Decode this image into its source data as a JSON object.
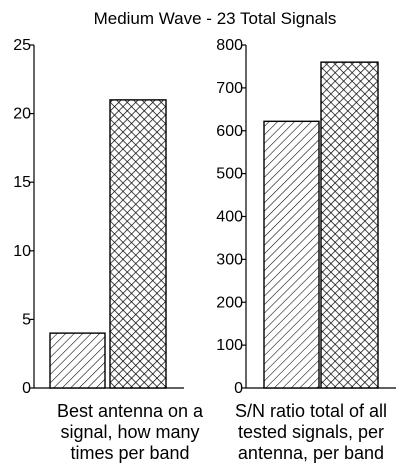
{
  "title": "Medium Wave - 23 Total Signals",
  "chart_data": [
    {
      "type": "bar",
      "title": "Medium Wave - 23 Total Signals",
      "caption": [
        "Best antenna on a",
        "signal, how many",
        "times per band"
      ],
      "ylim": [
        0,
        25
      ],
      "yticks": [
        0,
        5,
        10,
        15,
        20,
        25
      ],
      "categories": [
        "",
        ""
      ],
      "values": [
        4,
        21
      ],
      "patterns": [
        "diagonal-hatch",
        "cross-hatch"
      ],
      "grid": false,
      "legend": "none"
    },
    {
      "type": "bar",
      "caption": [
        "S/N ratio total of all",
        "tested signals, per",
        "antenna, per band"
      ],
      "ylim": [
        0,
        800
      ],
      "yticks": [
        0,
        100,
        200,
        300,
        400,
        500,
        600,
        700,
        800
      ],
      "categories": [
        "",
        ""
      ],
      "values": [
        622,
        760
      ],
      "patterns": [
        "diagonal-hatch",
        "cross-hatch"
      ],
      "grid": false,
      "legend": "none"
    }
  ]
}
